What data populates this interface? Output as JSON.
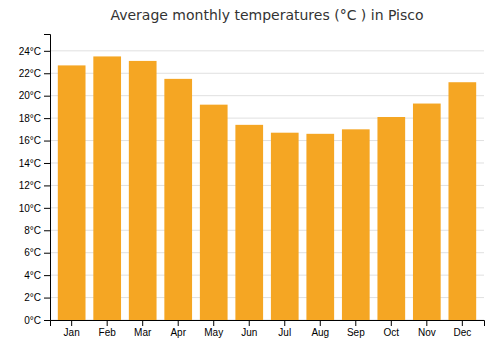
{
  "chart_data": {
    "type": "bar",
    "title": "Average monthly temperatures (°C ) in Pisco",
    "categories": [
      "Jan",
      "Feb",
      "Mar",
      "Apr",
      "May",
      "Jun",
      "Jul",
      "Aug",
      "Sep",
      "Oct",
      "Nov",
      "Dec"
    ],
    "values": [
      22.7,
      23.5,
      23.1,
      21.5,
      19.2,
      17.4,
      16.7,
      16.6,
      17.0,
      18.1,
      19.3,
      21.2
    ],
    "color": "#F5A623",
    "ylim": [
      0,
      25.5
    ],
    "yticks": [
      {
        "value": 0,
        "label": "0°C"
      },
      {
        "value": 2,
        "label": "2°C"
      },
      {
        "value": 4,
        "label": "4°C"
      },
      {
        "value": 6,
        "label": "6°C"
      },
      {
        "value": 8,
        "label": "8°C"
      },
      {
        "value": 10,
        "label": "10°C"
      },
      {
        "value": 12,
        "label": "12°C"
      },
      {
        "value": 14,
        "label": "14°C"
      },
      {
        "value": 16,
        "label": "16°C"
      },
      {
        "value": 18,
        "label": "18°C"
      },
      {
        "value": 20,
        "label": "20°C"
      },
      {
        "value": 22,
        "label": "22°C"
      },
      {
        "value": 24,
        "label": "24°C"
      }
    ],
    "grid": true
  }
}
